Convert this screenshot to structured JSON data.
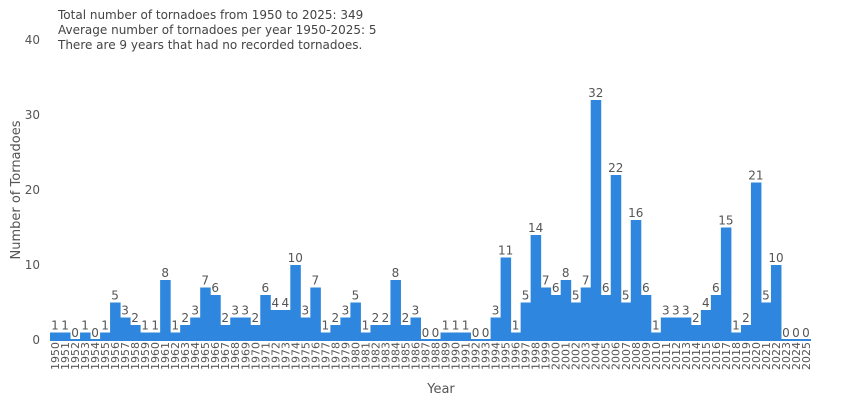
{
  "chart_data": {
    "type": "bar",
    "title": "",
    "xlabel": "Year",
    "ylabel": "Number of Tornadoes",
    "ylim": [
      0,
      40
    ],
    "yticks": [
      0,
      10,
      20,
      30,
      40
    ],
    "grid": false,
    "bar_color": "#2e86de",
    "annotations": [
      "Total number of tornadoes from 1950 to 2025: 349",
      "Average number of tornadoes per year 1950-2025: 5",
      "There are 9 years that had no recorded tornadoes."
    ],
    "categories": [
      "1950",
      "1951",
      "1952",
      "1953",
      "1954",
      "1955",
      "1956",
      "1957",
      "1958",
      "1959",
      "1960",
      "1961",
      "1962",
      "1963",
      "1964",
      "1965",
      "1966",
      "1967",
      "1968",
      "1969",
      "1970",
      "1971",
      "1972",
      "1973",
      "1974",
      "1975",
      "1976",
      "1977",
      "1978",
      "1979",
      "1980",
      "1981",
      "1982",
      "1983",
      "1984",
      "1985",
      "1986",
      "1987",
      "1988",
      "1989",
      "1990",
      "1991",
      "1992",
      "1993",
      "1994",
      "1995",
      "1996",
      "1997",
      "1998",
      "1999",
      "2000",
      "2001",
      "2002",
      "2003",
      "2004",
      "2005",
      "2006",
      "2007",
      "2008",
      "2009",
      "2010",
      "2011",
      "2012",
      "2013",
      "2014",
      "2015",
      "2016",
      "2017",
      "2018",
      "2019",
      "2020",
      "2021",
      "2022",
      "2023",
      "2024",
      "2025"
    ],
    "values": [
      1,
      1,
      0,
      1,
      0,
      1,
      5,
      3,
      2,
      1,
      1,
      8,
      1,
      2,
      3,
      7,
      6,
      2,
      3,
      3,
      2,
      6,
      4,
      4,
      10,
      3,
      7,
      1,
      2,
      3,
      5,
      1,
      2,
      2,
      8,
      2,
      3,
      0,
      0,
      1,
      1,
      1,
      0,
      0,
      3,
      11,
      1,
      5,
      14,
      7,
      6,
      8,
      5,
      7,
      32,
      6,
      22,
      5,
      16,
      6,
      1,
      3,
      3,
      3,
      2,
      4,
      6,
      15,
      1,
      2,
      21,
      5,
      10,
      0,
      0,
      0
    ]
  }
}
